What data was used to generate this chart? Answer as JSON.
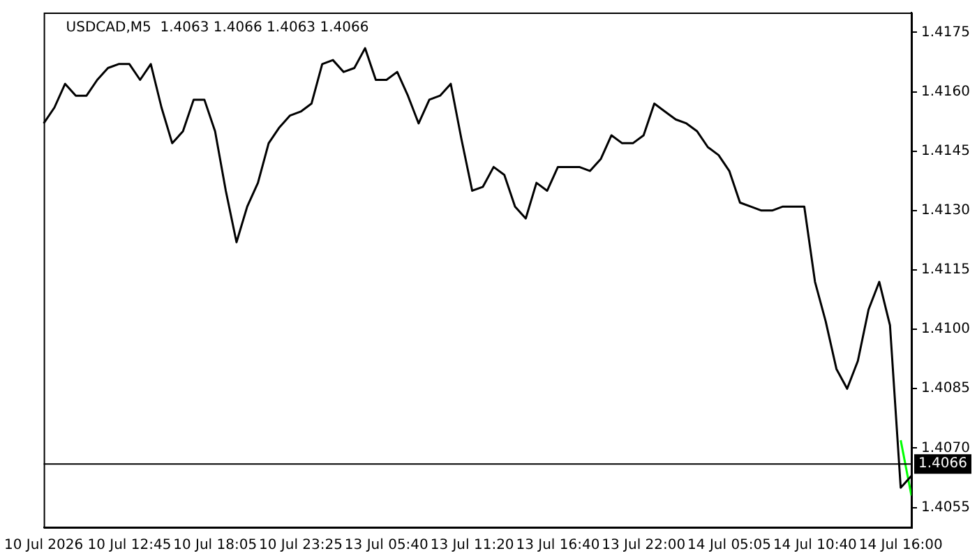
{
  "chart_data": {
    "type": "line",
    "title": "USDCAD,M5  1.4063 1.4066 1.4063 1.4066",
    "categories": [
      "10 Jul 2026",
      null,
      null,
      null,
      null,
      null,
      null,
      null,
      "10 Jul 12:45",
      null,
      null,
      null,
      null,
      null,
      null,
      null,
      "10 Jul 18:05",
      null,
      null,
      null,
      null,
      null,
      null,
      null,
      "10 Jul 23:25",
      null,
      null,
      null,
      null,
      null,
      null,
      null,
      "13 Jul 05:40",
      null,
      null,
      null,
      null,
      null,
      null,
      null,
      "13 Jul 11:20",
      null,
      null,
      null,
      null,
      null,
      null,
      null,
      "13 Jul 16:40",
      null,
      null,
      null,
      null,
      null,
      null,
      null,
      "13 Jul 22:00",
      null,
      null,
      null,
      null,
      null,
      null,
      null,
      "14 Jul 05:05",
      null,
      null,
      null,
      null,
      null,
      null,
      null,
      "14 Jul 10:40",
      null,
      null,
      null,
      null,
      null,
      null,
      null,
      "14 Jul 16:00",
      null
    ],
    "series": [
      {
        "color": "#000000",
        "values": [
          1.4152,
          1.4156,
          1.4162,
          1.4159,
          1.4159,
          1.4163,
          1.4166,
          1.4167,
          1.4167,
          1.4163,
          1.4167,
          1.4156,
          1.4147,
          1.415,
          1.4158,
          1.4158,
          1.415,
          1.4135,
          1.4122,
          1.4131,
          1.4137,
          1.4147,
          1.4151,
          1.4154,
          1.4155,
          1.4157,
          1.4167,
          1.4168,
          1.4165,
          1.4166,
          1.4171,
          1.4163,
          1.4163,
          1.4165,
          1.4159,
          1.4152,
          1.4158,
          1.4159,
          1.4162,
          1.4148,
          1.4135,
          1.4136,
          1.4141,
          1.4139,
          1.4131,
          1.4128,
          1.4137,
          1.4135,
          1.4141,
          1.4141,
          1.4141,
          1.414,
          1.4143,
          1.4149,
          1.4147,
          1.4147,
          1.4149,
          1.4157,
          1.4155,
          1.4153,
          1.4152,
          1.415,
          1.4146,
          1.4144,
          1.414,
          1.4132,
          1.4131,
          1.413,
          1.413,
          1.4131,
          1.4131,
          1.4131,
          1.4112,
          1.4102,
          1.409,
          1.4085,
          1.4092,
          1.4105,
          1.4112,
          1.4101,
          1.406,
          1.4063
        ]
      },
      {
        "color": "#00ff00",
        "values": [
          null,
          null,
          null,
          null,
          null,
          null,
          null,
          null,
          null,
          null,
          null,
          null,
          null,
          null,
          null,
          null,
          null,
          null,
          null,
          null,
          null,
          null,
          null,
          null,
          null,
          null,
          null,
          null,
          null,
          null,
          null,
          null,
          null,
          null,
          null,
          null,
          null,
          null,
          null,
          null,
          null,
          null,
          null,
          null,
          null,
          null,
          null,
          null,
          null,
          null,
          null,
          null,
          null,
          null,
          null,
          null,
          null,
          null,
          null,
          null,
          null,
          null,
          null,
          null,
          null,
          null,
          null,
          null,
          null,
          null,
          null,
          null,
          null,
          null,
          null,
          null,
          null,
          null,
          null,
          null,
          1.4072,
          1.4058
        ]
      }
    ],
    "ylim": [
      1.405,
      1.418
    ],
    "yticks": [
      {
        "value": 1.4055,
        "label": "1.4055"
      },
      {
        "value": 1.407,
        "label": "1.4070"
      },
      {
        "value": 1.4085,
        "label": "1.4085"
      },
      {
        "value": 1.41,
        "label": "1.4100"
      },
      {
        "value": 1.4115,
        "label": "1.4115"
      },
      {
        "value": 1.413,
        "label": "1.4130"
      },
      {
        "value": 1.4145,
        "label": "1.4145"
      },
      {
        "value": 1.416,
        "label": "1.4160"
      },
      {
        "value": 1.4175,
        "label": "1.4175"
      }
    ],
    "ref_lines": [
      {
        "axis": "y",
        "value": 1.4066,
        "label": "1.4066",
        "color": "#000000"
      }
    ],
    "legend": false,
    "marker": "none",
    "line_style": "solid"
  }
}
